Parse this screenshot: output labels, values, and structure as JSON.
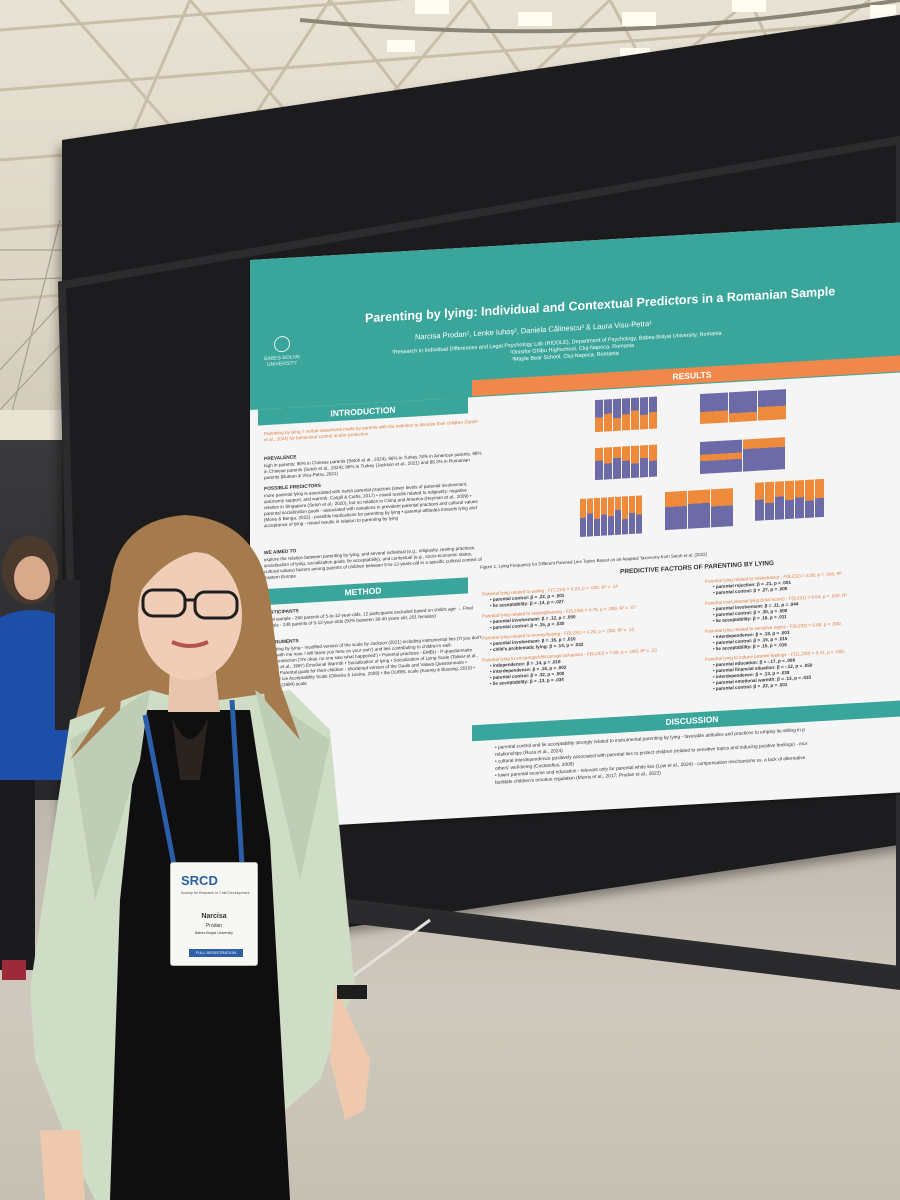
{
  "poster": {
    "title": "Parenting by lying: Individual and Contextual Predictors in a Romanian Sample",
    "authors": "Narcisa Prodan¹, Lenke Iuhoș², Daniela Călinescu³ & Laura Visu-Petra¹",
    "affiliation_1": "¹Research in Individual Differences and Legal Psychology Lab (RIDDLE), Department of Psychology, Babeș-Bolyai University, Romania",
    "affiliation_2": "²Onisifor Ghibu Highschool, Cluj-Napoca, Romania",
    "affiliation_3": "³Maple Bear School, Cluj-Napoca, Romania",
    "logo_text": "BABEȘ-BOLYAI UNIVERSITY",
    "sections": {
      "introduction": "INTRODUCTION",
      "method": "METHOD",
      "results": "RESULTS",
      "discussion": "DISCUSSION"
    },
    "intro_lead": "Parenting by lying = verbal statements made by parents with the intention to deceive their children (Setoh et al., 2024) for behavioral control and/or protection",
    "prevalence_heading": "PREVALENCE",
    "prevalence_text": "high in parents: 98% in Chinese parents (Setoh et al., 2024), 96% in Turkey 78% in American parents, 98% in Chinese parents (Setoh et al., 2024); 96% in Turkey (Jackson et al., 2021) and 98.3% in Romanian parents (Butean & Visu-Petra, 2021)",
    "predictors_heading": "POSSIBLE PREDICTORS",
    "predictors_text": "more parental lying is associated with harsh parental practices (lower levels of parental involvement, autonomy support, and warmth; Cargill & Curtis, 2017) • mixed results related to religiosity: negative relation in Singapore (Setoh et al., 2020), but no relation in China and America (Heyman et al., 2009) • parental socialization goals - associated with variations in prevalent parental practices and cultural values (Mone & Benga, 2022) - possible implications for parenting by lying • parental attitudes towards lying and acceptance of lying - mixed results in relation to parenting by lying",
    "aimed_heading": "WE AIMED TO",
    "aimed_text": "explore the relation between parenting by lying, and several individual (e.g., religiosity, rearing practices, socialization of lying, socialization goals, lie acceptability), and contextual (e.g., socio-economic status, cultural values) factors among parents of children between 5-to-12-years-old in a specific cultural context of Eastern Europe",
    "participants_heading": "PARTICIPANTS",
    "participants_text": "Initial sample - 260 parents of 5-to-12-year-olds. 12 participants excluded based on child's age → Final sample - 248 parents of 5-12-year-olds (50% between 30-40 years old, 201 females)",
    "instruments_heading": "INSTRUMENTS",
    "instruments_text": "Parenting by lying - modified version of the scale by Jackson (2021) including instrumental lies ('If you don't come with me now, I will leave you here on your own') and lies contributing to children's well-being/protection ('It's okay, no one saw what happened') • Parental practices - EMBU - P questionnaire (Castro et al., 1997) Emotional Warmth • Socialization of lying • Socialization of Lying Scale (Talwar et al., 2022) • Parental goals for their children - shortened version of the Goals and Values Questionnaire • Revised Lie Acceptability Scale (Oliveira & Levine, 2008) • the DUREL scale (Koenig & Bussing, 2010) • Singelis (1994) scale",
    "figure_caption": "Figure 1. Lying Frequency for Different Parental Lies Topics Based on an Adapted Taxonomy from Setoh et al. (2022)",
    "predictive_heading": "PREDICTIVE FACTORS OF PARENTING BY LYING",
    "predictors_left": [
      {
        "head": "Parental lying related to eating - F(7,234) = 5.23, p = .000, R² = .14",
        "items": [
          "parental control: β = .22, p = .001",
          "lie acceptability: β = .14, p = .027"
        ]
      },
      {
        "head": "Parental lying related to staying/leaving - F(5,239) = 4.76, p = .000, R² = .07",
        "items": [
          "parental involvement: β = .12, p = .050",
          "parental control: β = .15, p = .030"
        ]
      },
      {
        "head": "Parental lying related to money/buying - F(9,231) = 4.29, p = .000, R² = .13",
        "items": [
          "parental involvement: β = .16, p = .010",
          "child's problematic lying: β = .14, p = .032"
        ]
      },
      {
        "head": "Parental lying to encourage/discourage behaviors - F(9,232) = 7.60, p = .000, R² = .23",
        "items": [
          "independence: β = .14, p = .018",
          "interdependence: β = .16, p = .002",
          "parental control: β = .32, p = .000",
          "lie acceptability: β = .13, p = .034"
        ]
      }
    ],
    "predictors_right": [
      {
        "head": "Parental lying related to misbehavior - F(9,232) = 8.56, p = .000, R²",
        "items": [
          "parental rejection: β = .21, p = .001",
          "parental control: β = .27, p = .000"
        ]
      },
      {
        "head": "Parental instrumental lying (total score) - F(9,231) = 8.64, p = .000, R²",
        "items": [
          "parental involvement: β = .11, p = .044",
          "parental control: β = .30, p = .000",
          "lie acceptability: β = .16, p = .011"
        ]
      },
      {
        "head": "Parental lying related to sensitive topics - F(9,232) = 6.88, p = .000,",
        "items": [
          "interdependence: β = .18, p = .003",
          "parental control: β = .15, p = .015",
          "lie acceptability: β = .15, p = .016"
        ]
      },
      {
        "head": "Parental lying to induce positive feelings - F(11,228) = 5.41, p = .000,",
        "items": [
          "parental education: β = -.17, p = .008",
          "parental financial situation: β = -.12, p = .050",
          "interdependence: β = .13, p = .038",
          "parental emotional warmth: β = .13, p = .033",
          "parental control: β = .22, p = .001"
        ]
      }
    ],
    "discussion_lines": [
      "• parental control and lie acceptability strongly related to instrumental parenting by lying - favorable attitudes and practices to employ lie-telling in p",
      "relationships (Roza et al., 2024)",
      "• cultural interdependence positively associated with parental lies to protect children (related to sensitive topics and inducing positive feelings) - mor",
      "others' well-being (Costandius, 2009)",
      "• lower parental income and education - relevant only for parental white lies (Low et al., 2024) - compensation mechanisms vs. a lack of alternative",
      "facilitate children's emotion regulation (Morris et al., 2017; Prodan et al., 2022)"
    ]
  },
  "badge": {
    "brand": "SRCD",
    "subtitle": "Society for Research in Child Development",
    "first_name": "Narcisa",
    "last_name": "Prodan",
    "institution": "Babes-Bolyai University",
    "strip": "FULL REGISTRATION"
  }
}
